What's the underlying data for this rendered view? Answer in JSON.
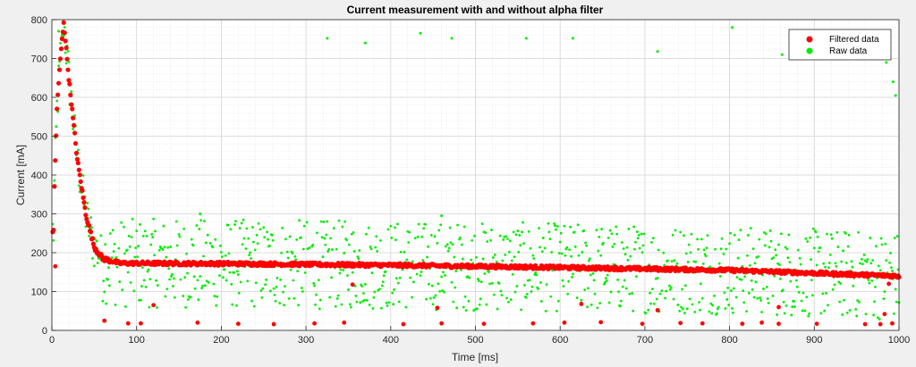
{
  "chart_data": {
    "type": "scatter",
    "title": "Current measurement with and without alpha filter",
    "xlabel": "Time [ms]",
    "ylabel": "Current [mA]",
    "xlim": [
      0,
      1000
    ],
    "ylim": [
      0,
      800
    ],
    "xticks": [
      0,
      100,
      200,
      300,
      400,
      500,
      600,
      700,
      800,
      900,
      1000
    ],
    "yticks": [
      0,
      100,
      200,
      300,
      400,
      500,
      600,
      700,
      800
    ],
    "grid": true,
    "minor_grid": true,
    "legend_position": "top-right",
    "series": [
      {
        "name": "Filtered data",
        "color": "#ff0000",
        "description": "Exponential rise to ~700 mA near 10 ms, decay to ~170 mA by 70 ms, then slowly declining to ~140 mA at 1000 ms; sparse outliers near 15 mA"
      },
      {
        "name": "Raw data",
        "color": "#00ee00",
        "description": "Noisy samples scattered roughly 60–290 mA around the filtered curve, with occasional spikes near 700–790 mA"
      }
    ],
    "key_points": [
      {
        "x": 2,
        "y": 255
      },
      {
        "x": 3,
        "y": 370
      },
      {
        "x": 6,
        "y": 570
      },
      {
        "x": 10,
        "y": 700
      },
      {
        "x": 14,
        "y": 795
      },
      {
        "x": 20,
        "y": 650
      },
      {
        "x": 30,
        "y": 440
      },
      {
        "x": 40,
        "y": 300
      },
      {
        "x": 50,
        "y": 215
      },
      {
        "x": 60,
        "y": 185
      },
      {
        "x": 80,
        "y": 173
      },
      {
        "x": 200,
        "y": 172
      },
      {
        "x": 400,
        "y": 168
      },
      {
        "x": 600,
        "y": 162
      },
      {
        "x": 800,
        "y": 155
      },
      {
        "x": 1000,
        "y": 140
      }
    ],
    "raw_spikes": [
      {
        "x": 8,
        "y": 770
      },
      {
        "x": 12,
        "y": 760
      },
      {
        "x": 325,
        "y": 752
      },
      {
        "x": 370,
        "y": 740
      },
      {
        "x": 435,
        "y": 765
      },
      {
        "x": 472,
        "y": 752
      },
      {
        "x": 560,
        "y": 752
      },
      {
        "x": 615,
        "y": 752
      },
      {
        "x": 715,
        "y": 718
      },
      {
        "x": 803,
        "y": 780
      },
      {
        "x": 862,
        "y": 710
      },
      {
        "x": 985,
        "y": 690
      },
      {
        "x": 993,
        "y": 640
      },
      {
        "x": 996,
        "y": 605
      },
      {
        "x": 460,
        "y": 295
      },
      {
        "x": 175,
        "y": 300
      }
    ],
    "filtered_low_outliers": [
      {
        "x": 62,
        "y": 25
      },
      {
        "x": 90,
        "y": 18
      },
      {
        "x": 105,
        "y": 18
      },
      {
        "x": 172,
        "y": 20
      },
      {
        "x": 220,
        "y": 17
      },
      {
        "x": 262,
        "y": 16
      },
      {
        "x": 310,
        "y": 18
      },
      {
        "x": 345,
        "y": 20
      },
      {
        "x": 415,
        "y": 16
      },
      {
        "x": 460,
        "y": 18
      },
      {
        "x": 510,
        "y": 17
      },
      {
        "x": 568,
        "y": 18
      },
      {
        "x": 605,
        "y": 20
      },
      {
        "x": 648,
        "y": 21
      },
      {
        "x": 697,
        "y": 17
      },
      {
        "x": 742,
        "y": 19
      },
      {
        "x": 768,
        "y": 18
      },
      {
        "x": 815,
        "y": 17
      },
      {
        "x": 838,
        "y": 20
      },
      {
        "x": 858,
        "y": 17
      },
      {
        "x": 903,
        "y": 17
      },
      {
        "x": 960,
        "y": 16
      },
      {
        "x": 978,
        "y": 16
      },
      {
        "x": 992,
        "y": 18
      },
      {
        "x": 4,
        "y": 165
      },
      {
        "x": 120,
        "y": 65
      },
      {
        "x": 355,
        "y": 118
      },
      {
        "x": 455,
        "y": 58
      },
      {
        "x": 625,
        "y": 68
      },
      {
        "x": 715,
        "y": 52
      },
      {
        "x": 858,
        "y": 60
      },
      {
        "x": 983,
        "y": 42
      },
      {
        "x": 988,
        "y": 120
      }
    ]
  }
}
